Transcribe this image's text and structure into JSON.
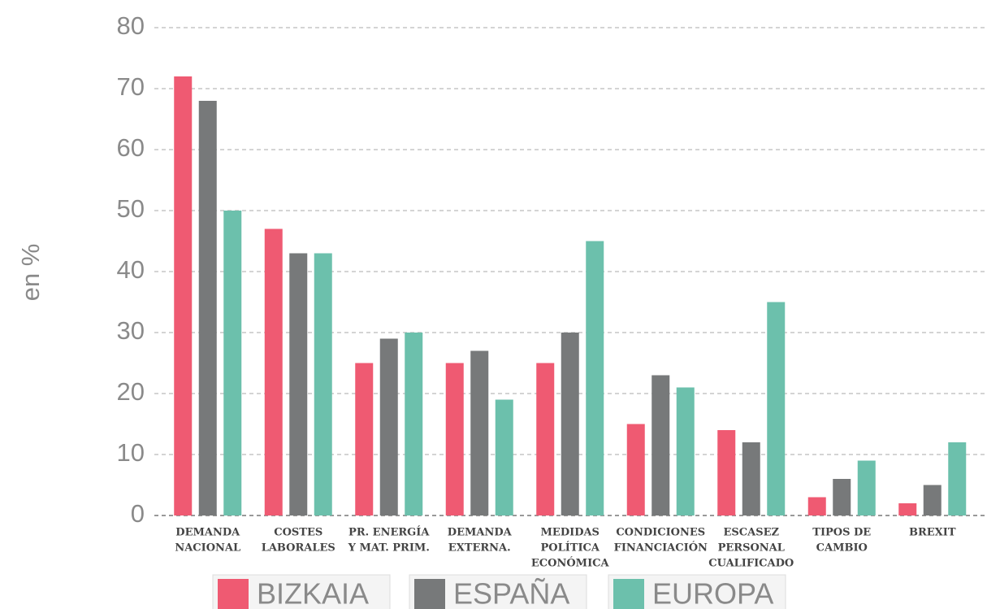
{
  "chart_data": {
    "type": "bar",
    "y_label": "en %",
    "categories": [
      [
        "DEMANDA",
        "NACIONAL"
      ],
      [
        "COSTES",
        "LABORALES"
      ],
      [
        "PR. ENERGÍA",
        "Y MAT. PRIM."
      ],
      [
        "DEMANDA",
        "EXTERNA."
      ],
      [
        "MEDIDAS",
        "POLÍTICA",
        "ECONÓMICA"
      ],
      [
        "CONDICIONES",
        "FINANCIACIÓN"
      ],
      [
        "ESCASEZ",
        "PERSONAL",
        "CUALIFICADO"
      ],
      [
        "TIPOS DE",
        "CAMBIO"
      ],
      [
        "BREXIT"
      ]
    ],
    "series": [
      {
        "name": "BIZKAIA",
        "color": "#ef5a72",
        "values": [
          72,
          47,
          25,
          25,
          25,
          15,
          14,
          3,
          2
        ]
      },
      {
        "name": "ESPAÑA",
        "color": "#77797a",
        "values": [
          68,
          43,
          29,
          27,
          30,
          23,
          12,
          6,
          5
        ]
      },
      {
        "name": "EUROPA",
        "color": "#6cc0ac",
        "values": [
          50,
          43,
          30,
          19,
          45,
          21,
          35,
          9,
          12
        ]
      }
    ],
    "ylim": [
      0,
      80
    ],
    "yticks": [
      0,
      10,
      20,
      30,
      40,
      50,
      60,
      70,
      80
    ],
    "grid": true
  }
}
